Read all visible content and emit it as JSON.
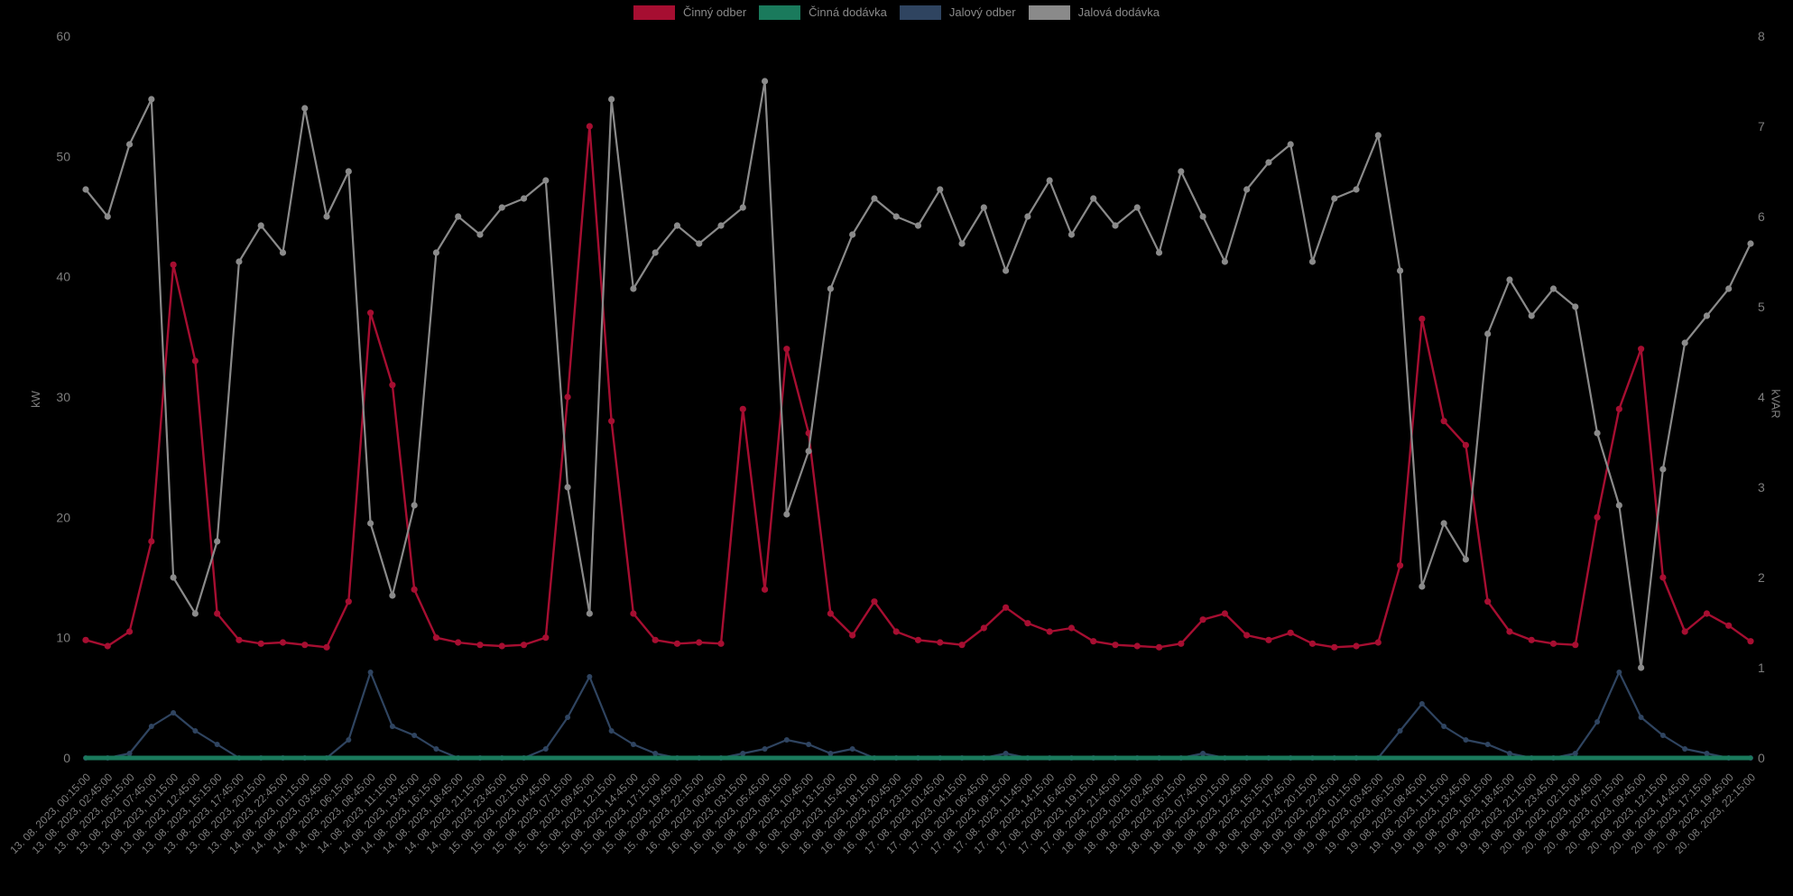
{
  "colors": {
    "background": "#000000",
    "tick_text": "#7e7e7e",
    "legend_text": "#8a8a8a"
  },
  "chart_data": {
    "type": "line",
    "title": "",
    "grid": false,
    "legend_position": "top",
    "x_axis_time_step_minutes": 150,
    "x_labels": [
      "13. 08. 2023, 00:15:00",
      "13. 08. 2023, 02:45:00",
      "13. 08. 2023, 05:15:00",
      "13. 08. 2023, 07:45:00",
      "13. 08. 2023, 10:15:00",
      "13. 08. 2023, 12:45:00",
      "13. 08. 2023, 15:15:00",
      "13. 08. 2023, 17:45:00",
      "13. 08. 2023, 20:15:00",
      "13. 08. 2023, 22:45:00",
      "14. 08. 2023, 01:15:00",
      "14. 08. 2023, 03:45:00",
      "14. 08. 2023, 06:15:00",
      "14. 08. 2023, 08:45:00",
      "14. 08. 2023, 11:15:00",
      "14. 08. 2023, 13:45:00",
      "14. 08. 2023, 16:15:00",
      "14. 08. 2023, 18:45:00",
      "14. 08. 2023, 21:15:00",
      "14. 08. 2023, 23:45:00",
      "15. 08. 2023, 02:15:00",
      "15. 08. 2023, 04:45:00",
      "15. 08. 2023, 07:15:00",
      "15. 08. 2023, 09:45:00",
      "15. 08. 2023, 12:15:00",
      "15. 08. 2023, 14:45:00",
      "15. 08. 2023, 17:15:00",
      "15. 08. 2023, 19:45:00",
      "15. 08. 2023, 22:15:00",
      "16. 08. 2023, 00:45:00",
      "16. 08. 2023, 03:15:00",
      "16. 08. 2023, 05:45:00",
      "16. 08. 2023, 08:15:00",
      "16. 08. 2023, 10:45:00",
      "16. 08. 2023, 13:15:00",
      "16. 08. 2023, 15:45:00",
      "16. 08. 2023, 18:15:00",
      "16. 08. 2023, 20:45:00",
      "16. 08. 2023, 23:15:00",
      "17. 08. 2023, 01:45:00",
      "17. 08. 2023, 04:15:00",
      "17. 08. 2023, 06:45:00",
      "17. 08. 2023, 09:15:00",
      "17. 08. 2023, 11:45:00",
      "17. 08. 2023, 14:15:00",
      "17. 08. 2023, 16:45:00",
      "17. 08. 2023, 19:15:00",
      "17. 08. 2023, 21:45:00",
      "18. 08. 2023, 00:15:00",
      "18. 08. 2023, 02:45:00",
      "18. 08. 2023, 05:15:00",
      "18. 08. 2023, 07:45:00",
      "18. 08. 2023, 10:15:00",
      "18. 08. 2023, 12:45:00",
      "18. 08. 2023, 15:15:00",
      "18. 08. 2023, 17:45:00",
      "18. 08. 2023, 20:15:00",
      "18. 08. 2023, 22:45:00",
      "19. 08. 2023, 01:15:00",
      "19. 08. 2023, 03:45:00",
      "19. 08. 2023, 06:15:00",
      "19. 08. 2023, 08:45:00",
      "19. 08. 2023, 11:15:00",
      "19. 08. 2023, 13:45:00",
      "19. 08. 2023, 16:15:00",
      "19. 08. 2023, 18:45:00",
      "19. 08. 2023, 21:15:00",
      "19. 08. 2023, 23:45:00",
      "20. 08. 2023, 02:15:00",
      "20. 08. 2023, 04:45:00",
      "20. 08. 2023, 07:15:00",
      "20. 08. 2023, 09:45:00",
      "20. 08. 2023, 12:15:00",
      "20. 08. 2023, 14:45:00",
      "20. 08. 2023, 17:15:00",
      "20. 08. 2023, 19:45:00",
      "20. 08. 2023, 22:15:00"
    ],
    "axes": {
      "left": {
        "label": "kW",
        "min": 0,
        "max": 60,
        "ticks": [
          0,
          10,
          20,
          30,
          40,
          50,
          60
        ]
      },
      "right": {
        "label": "kVAR",
        "min": 0,
        "max": 8,
        "ticks": [
          0,
          1,
          2,
          3,
          4,
          5,
          6,
          7,
          8
        ]
      }
    },
    "series": [
      {
        "id": "cinny-odber",
        "name": "Činný odber",
        "axis": "left",
        "color": "#a60e31",
        "values": [
          9.8,
          9.3,
          10.5,
          18,
          41,
          33,
          12,
          9.8,
          9.5,
          9.6,
          9.4,
          9.2,
          13,
          37,
          31,
          14,
          10,
          9.6,
          9.4,
          9.3,
          9.4,
          10,
          30,
          52.5,
          28,
          12,
          9.8,
          9.5,
          9.6,
          9.5,
          29,
          14,
          34,
          27,
          12,
          10.2,
          13,
          10.5,
          9.8,
          9.6,
          9.4,
          10.8,
          12.5,
          11.2,
          10.5,
          10.8,
          9.7,
          9.4,
          9.3,
          9.2,
          9.5,
          11.5,
          12,
          10.2,
          9.8,
          10.4,
          9.5,
          9.2,
          9.3,
          9.6,
          16,
          36.5,
          28,
          26,
          13,
          10.5,
          9.8,
          9.5,
          9.4,
          20,
          29,
          34,
          15,
          10.5,
          12,
          11,
          9.7
        ]
      },
      {
        "id": "cinna-dodavka",
        "name": "Činná dodávka",
        "axis": "left",
        "color": "#1a7a5c",
        "values": [
          0,
          0,
          0,
          0,
          0,
          0,
          0,
          0,
          0,
          0,
          0,
          0,
          0,
          0,
          0,
          0,
          0,
          0,
          0,
          0,
          0,
          0,
          0,
          0,
          0,
          0,
          0,
          0,
          0,
          0,
          0,
          0,
          0,
          0,
          0,
          0,
          0,
          0,
          0,
          0,
          0,
          0,
          0,
          0,
          0,
          0,
          0,
          0,
          0,
          0,
          0,
          0,
          0,
          0,
          0,
          0,
          0,
          0,
          0,
          0,
          0,
          0,
          0,
          0,
          0,
          0,
          0,
          0,
          0,
          0,
          0,
          0,
          0,
          0,
          0,
          0,
          0
        ]
      },
      {
        "id": "jalovy-odber",
        "name": "Jalový odber",
        "axis": "right",
        "color": "#2f4460",
        "values": [
          0,
          0,
          0.05,
          0.35,
          0.5,
          0.3,
          0.15,
          0,
          0,
          0,
          0,
          0,
          0.2,
          0.95,
          0.35,
          0.25,
          0.1,
          0,
          0,
          0,
          0,
          0.1,
          0.45,
          0.9,
          0.3,
          0.15,
          0.05,
          0,
          0,
          0,
          0.05,
          0.1,
          0.2,
          0.15,
          0.05,
          0.1,
          0,
          0,
          0,
          0,
          0,
          0,
          0.05,
          0,
          0,
          0,
          0,
          0,
          0,
          0,
          0,
          0.05,
          0,
          0,
          0,
          0,
          0,
          0,
          0,
          0,
          0.3,
          0.6,
          0.35,
          0.2,
          0.15,
          0.05,
          0,
          0,
          0.05,
          0.4,
          0.95,
          0.45,
          0.25,
          0.1,
          0.05,
          0,
          0
        ]
      },
      {
        "id": "jalova-dodavka",
        "name": "Jalová dodávka",
        "axis": "right",
        "color": "#8a8a8a",
        "values": [
          6.3,
          6.0,
          6.8,
          7.3,
          2.0,
          1.6,
          2.4,
          5.5,
          5.9,
          5.6,
          7.2,
          6.0,
          6.5,
          2.6,
          1.8,
          2.8,
          5.6,
          6.0,
          5.8,
          6.1,
          6.2,
          6.4,
          3.0,
          1.6,
          7.3,
          5.2,
          5.6,
          5.9,
          5.7,
          5.9,
          6.1,
          7.5,
          2.7,
          3.4,
          5.2,
          5.8,
          6.2,
          6.0,
          5.9,
          6.3,
          5.7,
          6.1,
          5.4,
          6.0,
          6.4,
          5.8,
          6.2,
          5.9,
          6.1,
          5.6,
          6.5,
          6.0,
          5.5,
          6.3,
          6.6,
          6.8,
          5.5,
          6.2,
          6.3,
          6.9,
          5.4,
          1.9,
          2.6,
          2.2,
          4.7,
          5.3,
          4.9,
          5.2,
          5.0,
          3.6,
          2.8,
          1.0,
          3.2,
          4.6,
          4.9,
          5.2,
          5.7
        ]
      }
    ]
  }
}
